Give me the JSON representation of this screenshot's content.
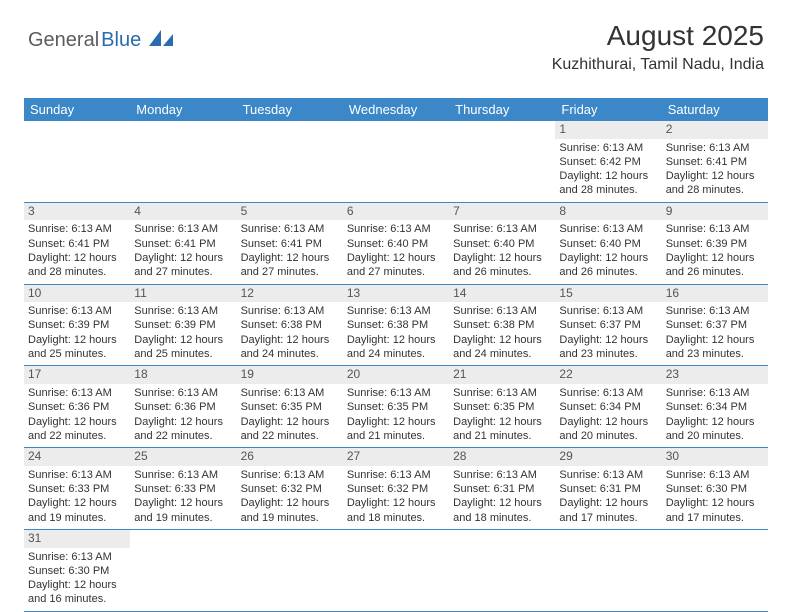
{
  "logo": {
    "part1": "General",
    "part2": "Blue"
  },
  "header": {
    "title": "August 2025",
    "location": "Kuzhithurai, Tamil Nadu, India"
  },
  "colors": {
    "header_bg": "#3b87c8",
    "header_fg": "#ffffff",
    "daynum_bg": "#ececec",
    "grid_line": "#3b87c8",
    "logo_gray": "#5c5c5c",
    "logo_blue": "#2a6bb0"
  },
  "weekdays": [
    "Sunday",
    "Monday",
    "Tuesday",
    "Wednesday",
    "Thursday",
    "Friday",
    "Saturday"
  ],
  "weeks": [
    [
      null,
      null,
      null,
      null,
      null,
      {
        "n": "1",
        "sr": "Sunrise: 6:13 AM",
        "ss": "Sunset: 6:42 PM",
        "d1": "Daylight: 12 hours",
        "d2": "and 28 minutes."
      },
      {
        "n": "2",
        "sr": "Sunrise: 6:13 AM",
        "ss": "Sunset: 6:41 PM",
        "d1": "Daylight: 12 hours",
        "d2": "and 28 minutes."
      }
    ],
    [
      {
        "n": "3",
        "sr": "Sunrise: 6:13 AM",
        "ss": "Sunset: 6:41 PM",
        "d1": "Daylight: 12 hours",
        "d2": "and 28 minutes."
      },
      {
        "n": "4",
        "sr": "Sunrise: 6:13 AM",
        "ss": "Sunset: 6:41 PM",
        "d1": "Daylight: 12 hours",
        "d2": "and 27 minutes."
      },
      {
        "n": "5",
        "sr": "Sunrise: 6:13 AM",
        "ss": "Sunset: 6:41 PM",
        "d1": "Daylight: 12 hours",
        "d2": "and 27 minutes."
      },
      {
        "n": "6",
        "sr": "Sunrise: 6:13 AM",
        "ss": "Sunset: 6:40 PM",
        "d1": "Daylight: 12 hours",
        "d2": "and 27 minutes."
      },
      {
        "n": "7",
        "sr": "Sunrise: 6:13 AM",
        "ss": "Sunset: 6:40 PM",
        "d1": "Daylight: 12 hours",
        "d2": "and 26 minutes."
      },
      {
        "n": "8",
        "sr": "Sunrise: 6:13 AM",
        "ss": "Sunset: 6:40 PM",
        "d1": "Daylight: 12 hours",
        "d2": "and 26 minutes."
      },
      {
        "n": "9",
        "sr": "Sunrise: 6:13 AM",
        "ss": "Sunset: 6:39 PM",
        "d1": "Daylight: 12 hours",
        "d2": "and 26 minutes."
      }
    ],
    [
      {
        "n": "10",
        "sr": "Sunrise: 6:13 AM",
        "ss": "Sunset: 6:39 PM",
        "d1": "Daylight: 12 hours",
        "d2": "and 25 minutes."
      },
      {
        "n": "11",
        "sr": "Sunrise: 6:13 AM",
        "ss": "Sunset: 6:39 PM",
        "d1": "Daylight: 12 hours",
        "d2": "and 25 minutes."
      },
      {
        "n": "12",
        "sr": "Sunrise: 6:13 AM",
        "ss": "Sunset: 6:38 PM",
        "d1": "Daylight: 12 hours",
        "d2": "and 24 minutes."
      },
      {
        "n": "13",
        "sr": "Sunrise: 6:13 AM",
        "ss": "Sunset: 6:38 PM",
        "d1": "Daylight: 12 hours",
        "d2": "and 24 minutes."
      },
      {
        "n": "14",
        "sr": "Sunrise: 6:13 AM",
        "ss": "Sunset: 6:38 PM",
        "d1": "Daylight: 12 hours",
        "d2": "and 24 minutes."
      },
      {
        "n": "15",
        "sr": "Sunrise: 6:13 AM",
        "ss": "Sunset: 6:37 PM",
        "d1": "Daylight: 12 hours",
        "d2": "and 23 minutes."
      },
      {
        "n": "16",
        "sr": "Sunrise: 6:13 AM",
        "ss": "Sunset: 6:37 PM",
        "d1": "Daylight: 12 hours",
        "d2": "and 23 minutes."
      }
    ],
    [
      {
        "n": "17",
        "sr": "Sunrise: 6:13 AM",
        "ss": "Sunset: 6:36 PM",
        "d1": "Daylight: 12 hours",
        "d2": "and 22 minutes."
      },
      {
        "n": "18",
        "sr": "Sunrise: 6:13 AM",
        "ss": "Sunset: 6:36 PM",
        "d1": "Daylight: 12 hours",
        "d2": "and 22 minutes."
      },
      {
        "n": "19",
        "sr": "Sunrise: 6:13 AM",
        "ss": "Sunset: 6:35 PM",
        "d1": "Daylight: 12 hours",
        "d2": "and 22 minutes."
      },
      {
        "n": "20",
        "sr": "Sunrise: 6:13 AM",
        "ss": "Sunset: 6:35 PM",
        "d1": "Daylight: 12 hours",
        "d2": "and 21 minutes."
      },
      {
        "n": "21",
        "sr": "Sunrise: 6:13 AM",
        "ss": "Sunset: 6:35 PM",
        "d1": "Daylight: 12 hours",
        "d2": "and 21 minutes."
      },
      {
        "n": "22",
        "sr": "Sunrise: 6:13 AM",
        "ss": "Sunset: 6:34 PM",
        "d1": "Daylight: 12 hours",
        "d2": "and 20 minutes."
      },
      {
        "n": "23",
        "sr": "Sunrise: 6:13 AM",
        "ss": "Sunset: 6:34 PM",
        "d1": "Daylight: 12 hours",
        "d2": "and 20 minutes."
      }
    ],
    [
      {
        "n": "24",
        "sr": "Sunrise: 6:13 AM",
        "ss": "Sunset: 6:33 PM",
        "d1": "Daylight: 12 hours",
        "d2": "and 19 minutes."
      },
      {
        "n": "25",
        "sr": "Sunrise: 6:13 AM",
        "ss": "Sunset: 6:33 PM",
        "d1": "Daylight: 12 hours",
        "d2": "and 19 minutes."
      },
      {
        "n": "26",
        "sr": "Sunrise: 6:13 AM",
        "ss": "Sunset: 6:32 PM",
        "d1": "Daylight: 12 hours",
        "d2": "and 19 minutes."
      },
      {
        "n": "27",
        "sr": "Sunrise: 6:13 AM",
        "ss": "Sunset: 6:32 PM",
        "d1": "Daylight: 12 hours",
        "d2": "and 18 minutes."
      },
      {
        "n": "28",
        "sr": "Sunrise: 6:13 AM",
        "ss": "Sunset: 6:31 PM",
        "d1": "Daylight: 12 hours",
        "d2": "and 18 minutes."
      },
      {
        "n": "29",
        "sr": "Sunrise: 6:13 AM",
        "ss": "Sunset: 6:31 PM",
        "d1": "Daylight: 12 hours",
        "d2": "and 17 minutes."
      },
      {
        "n": "30",
        "sr": "Sunrise: 6:13 AM",
        "ss": "Sunset: 6:30 PM",
        "d1": "Daylight: 12 hours",
        "d2": "and 17 minutes."
      }
    ],
    [
      {
        "n": "31",
        "sr": "Sunrise: 6:13 AM",
        "ss": "Sunset: 6:30 PM",
        "d1": "Daylight: 12 hours",
        "d2": "and 16 minutes."
      },
      null,
      null,
      null,
      null,
      null,
      null
    ]
  ]
}
